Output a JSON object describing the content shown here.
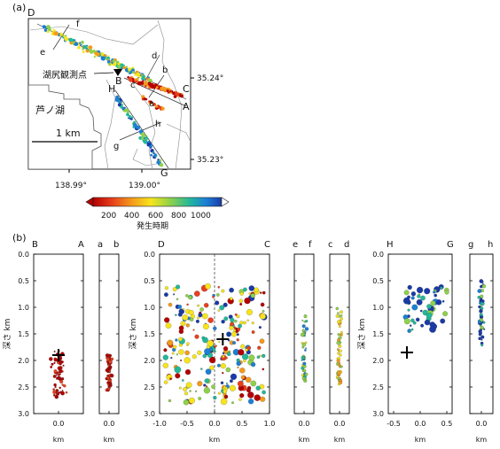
{
  "panels": {
    "a_tag": "(a)",
    "b_tag": "(b)"
  },
  "map": {
    "corner_letters": [
      "D",
      "C",
      "B",
      "A",
      "H",
      "G",
      "f",
      "e",
      "d",
      "b",
      "c",
      "a",
      "h",
      "g"
    ],
    "station_label": "湖尻観測点",
    "lake_label": "芦ノ湖",
    "scale_label": "1 km",
    "lat_ticks": [
      "35.24°",
      "35.23°"
    ],
    "lon_ticks": [
      "138.99°",
      "139.00°"
    ]
  },
  "colorbar": {
    "ticks": [
      "200",
      "400",
      "600",
      "800",
      "1000"
    ],
    "label": "発生時期",
    "colors": [
      "#b30000",
      "#e8401c",
      "#f49a1c",
      "#f7e51c",
      "#8fd14a",
      "#23b89a",
      "#1c7fd6",
      "#1a3aa8"
    ]
  },
  "sections": {
    "depth_label": "深さ km",
    "km_label": "km",
    "y_ticks": [
      "0.0",
      "0.5",
      "1.0",
      "1.5",
      "2.0",
      "2.5",
      "3.0"
    ],
    "cross": "+"
  },
  "chart_data": [
    {
      "type": "scatter",
      "title": "B–A",
      "endpoints": [
        "B",
        "A"
      ],
      "xlabel": "km",
      "ylabel": "深さ km",
      "x_ticks": [
        "0.0"
      ],
      "ylim": [
        0,
        3
      ],
      "cluster": {
        "x_center": 0.0,
        "depth_range": [
          1.8,
          2.7
        ],
        "color": "early (red)"
      },
      "station": {
        "x": 0.0,
        "depth": 1.9
      }
    },
    {
      "type": "scatter",
      "title": "a–b",
      "endpoints": [
        "a",
        "b"
      ],
      "xlabel": "km",
      "ylabel": "深さ km",
      "x_ticks": [
        "0.0"
      ],
      "ylim": [
        0,
        3
      ],
      "cluster": {
        "x_center": 0.0,
        "depth_range": [
          1.9,
          2.6
        ],
        "color": "early (red)"
      }
    },
    {
      "type": "scatter",
      "title": "D–C",
      "endpoints": [
        "D",
        "C"
      ],
      "xlabel": "km",
      "ylabel": "深さ km",
      "x_ticks": [
        "-1.0",
        "-0.5",
        "0.0",
        "0.5",
        "1.0"
      ],
      "xlim": [
        -1.0,
        1.0
      ],
      "ylim": [
        0,
        3
      ],
      "cluster": {
        "x_range": [
          -0.9,
          0.9
        ],
        "depth_range": [
          0.6,
          2.8
        ]
      },
      "station": {
        "x": 0.15,
        "depth": 1.6
      }
    },
    {
      "type": "scatter",
      "title": "e–f",
      "endpoints": [
        "e",
        "f"
      ],
      "xlabel": "km",
      "ylabel": "深さ km",
      "x_ticks": [
        "0.0"
      ],
      "ylim": [
        0,
        3
      ],
      "cluster": {
        "x_center": 0.0,
        "depth_range": [
          1.1,
          2.4
        ],
        "color": "green/yellow"
      }
    },
    {
      "type": "scatter",
      "title": "c–d",
      "endpoints": [
        "c",
        "d"
      ],
      "xlabel": "km",
      "ylabel": "深さ km",
      "x_ticks": [
        "0.0"
      ],
      "ylim": [
        0,
        3
      ],
      "cluster": {
        "x_center": 0.0,
        "depth_range": [
          1.0,
          2.5
        ],
        "color": "yellow/green"
      }
    },
    {
      "type": "scatter",
      "title": "H–G",
      "endpoints": [
        "H",
        "G"
      ],
      "xlabel": "km",
      "ylabel": "深さ km",
      "x_ticks": [
        "-0.5",
        "0.0",
        "0.5"
      ],
      "xlim": [
        -0.6,
        0.6
      ],
      "ylim": [
        0,
        3
      ],
      "cluster": {
        "x_range": [
          -0.3,
          0.5
        ],
        "depth_range": [
          0.6,
          1.5
        ],
        "color": "late (blue/green)"
      },
      "station": {
        "x": -0.25,
        "depth": 1.85
      }
    },
    {
      "type": "scatter",
      "title": "g–h",
      "endpoints": [
        "g",
        "h"
      ],
      "xlabel": "km",
      "ylabel": "深さ km",
      "x_ticks": [
        "0.0"
      ],
      "ylim": [
        0,
        3
      ],
      "cluster": {
        "x_center": 0.0,
        "depth_range": [
          0.5,
          1.8
        ],
        "color": "late (blue)"
      }
    }
  ]
}
